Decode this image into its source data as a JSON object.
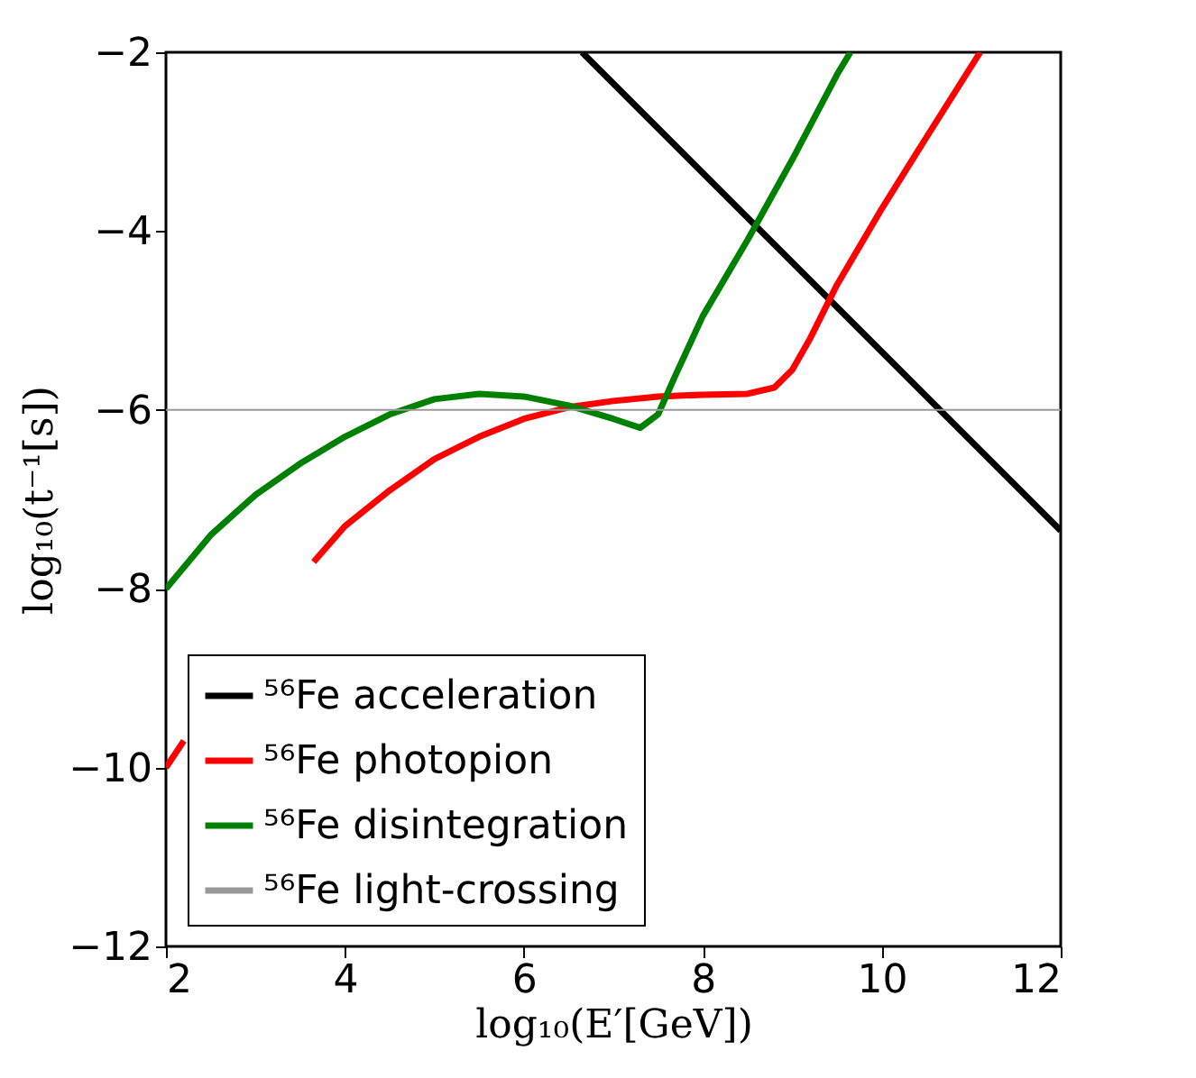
{
  "chart_data": {
    "type": "line",
    "xlabel": "log₁₀(E′[GeV])",
    "ylabel": "log₁₀(t⁻¹[s])",
    "xlim": [
      2,
      12
    ],
    "ylim": [
      -12,
      -2
    ],
    "xticks": [
      2,
      4,
      6,
      8,
      10,
      12
    ],
    "yticks": [
      -12,
      -10,
      -8,
      -6,
      -4,
      -2
    ],
    "grid": false,
    "legend": "bottom left",
    "marker": "none",
    "line_style": "solid",
    "series": [
      {
        "name": "⁵⁶Fe acceleration",
        "color": "#000000",
        "x": [
          6.65,
          12
        ],
        "values": [
          -2,
          -7.35
        ]
      },
      {
        "name": "⁵⁶Fe photopion",
        "color": "#ff0000",
        "x": [
          2,
          2.2,
          2.8,
          3.65,
          4,
          4.5,
          5,
          5.5,
          6,
          6.5,
          7,
          7.5,
          8,
          8.5,
          8.8,
          9,
          9.2,
          9.5,
          10,
          10.5,
          11.1
        ],
        "values": [
          -10,
          -9.7,
          null,
          -7.7,
          -7.3,
          -6.9,
          -6.55,
          -6.3,
          -6.1,
          -5.97,
          -5.9,
          -5.85,
          -5.83,
          -5.82,
          -5.75,
          -5.55,
          -5.2,
          -4.6,
          -3.75,
          -2.95,
          -2
        ]
      },
      {
        "name": "⁵⁶Fe disintegration",
        "color": "#008000",
        "x": [
          2,
          2.5,
          3,
          3.5,
          4,
          4.5,
          5,
          5.5,
          6,
          6.5,
          7,
          7.3,
          7.5,
          7.7,
          8,
          8.5,
          9,
          9.5,
          9.65
        ],
        "values": [
          -8,
          -7.4,
          -6.95,
          -6.6,
          -6.3,
          -6.05,
          -5.88,
          -5.82,
          -5.85,
          -5.95,
          -6.1,
          -6.2,
          -6.05,
          -5.6,
          -4.95,
          -4.1,
          -3.2,
          -2.25,
          -2
        ]
      }
    ],
    "ref_lines": [
      {
        "axis": "y",
        "value": -6,
        "label": "⁵⁶Fe light-crossing",
        "color": "#999999"
      }
    ]
  }
}
